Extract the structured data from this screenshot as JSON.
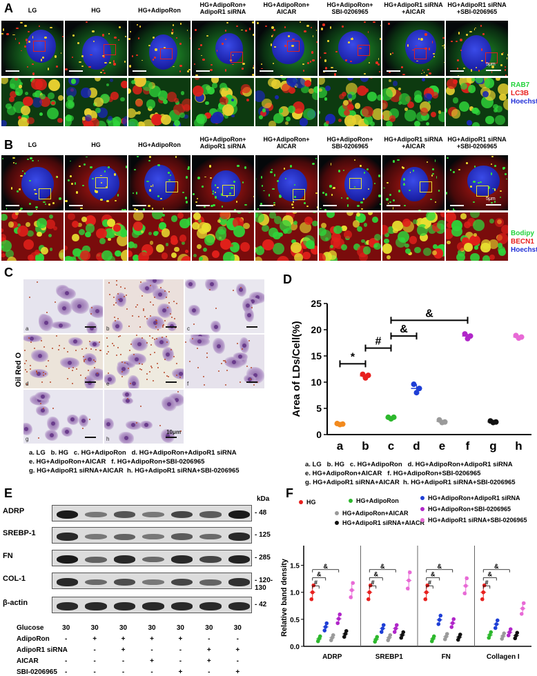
{
  "panels": {
    "A": "A",
    "B": "B",
    "C": "C",
    "D": "D",
    "E": "E",
    "F": "F"
  },
  "groups_A": [
    "LG",
    "HG",
    "HG+AdipoRon",
    "HG+AdipoRon+\nAdipoR1 siRNA",
    "HG+AdipoRon+\nAICAR",
    "HG+AdipoRon+\nSBI-0206965",
    "HG+AdipoR1 siRNA\n+AICAR",
    "HG+AdipoR1 siRNA\n+SBI-0206965"
  ],
  "groups_B": [
    "LG",
    "HG",
    "HG+AdipoRon",
    "HG+AdipoRon+\nAdipoR1 siRNA",
    "HG+AdipoRon+\nAICAR",
    "HG+AdipoRon+\nSBI-0206965",
    "HG+AdipoR1 siRNA\n+AICAR",
    "HG+AdipoR1 siRNA\n+SBI-0206965"
  ],
  "stainA": [
    {
      "name": "RAB7",
      "color": "#22d23a"
    },
    {
      "name": "LC3B",
      "color": "#e8201e"
    },
    {
      "name": "Hoechst",
      "color": "#2230d8"
    }
  ],
  "stainB": [
    {
      "name": "Bodipy",
      "color": "#22d23a"
    },
    {
      "name": "BECN1",
      "color": "#e8201e"
    },
    {
      "name": "Hoechst",
      "color": "#2230d8"
    }
  ],
  "scale_A": "5μm",
  "scale_B": "5μm",
  "oil_red": {
    "side_label": "Oil Red O",
    "tiles": [
      "a",
      "b",
      "c",
      "d",
      "e",
      "f",
      "g",
      "h"
    ],
    "scale": "10μm",
    "legend": [
      "a. LG   b. HG   c. HG+AdipoRon   d. HG+AdipoRon+AdipoR1 siRNA",
      "e. HG+AdipoRon+AICAR   f. HG+AdipoRon+SBI-0206965",
      "g. HG+AdipoR1 siRNA+AICAR  h. HG+AdipoR1 siRNA+SBI-0206965"
    ]
  },
  "chart_D_legend": [
    "a. LG   b. HG   c. HG+AdipoRon   d. HG+AdipoRon+AdipoR1 siRNA",
    "e. HG+AdipoRon+AICAR   f. HG+AdipoRon+SBI-0206965",
    "g. HG+AdipoR1 siRNA+AICAR  h. HG+AdipoR1 siRNA+SBI-0206965"
  ],
  "western": {
    "proteins": [
      {
        "name": "ADRP",
        "kda": "- 48"
      },
      {
        "name": "SREBP-1",
        "kda": "- 125"
      },
      {
        "name": "FN",
        "kda": "- 285"
      },
      {
        "name": "COL-1",
        "kda": "- 120-130"
      },
      {
        "name": "β-actin",
        "kda": "- 42"
      }
    ],
    "kda_header": "kDa",
    "conditions": [
      {
        "name": "Glucose",
        "vals": [
          "30",
          "30",
          "30",
          "30",
          "30",
          "30",
          "30"
        ]
      },
      {
        "name": "AdipoRon",
        "vals": [
          "-",
          "+",
          "+",
          "+",
          "+",
          "-",
          "-"
        ]
      },
      {
        "name": "AdipoR1 siRNA",
        "vals": [
          "-",
          "-",
          "+",
          "-",
          "-",
          "+",
          "+"
        ]
      },
      {
        "name": "AICAR",
        "vals": [
          "-",
          "-",
          "-",
          "+",
          "-",
          "+",
          "-"
        ]
      },
      {
        "name": "SBI-0206965",
        "vals": [
          "-",
          "-",
          "-",
          "-",
          "+",
          "-",
          "+"
        ]
      }
    ]
  },
  "chart_data": [
    {
      "type": "scatter",
      "panel": "D",
      "title": "",
      "ylabel": "Area of LDs/Cell(%)",
      "xlabel": "",
      "categories": [
        "a",
        "b",
        "c",
        "d",
        "e",
        "f",
        "g",
        "h"
      ],
      "ylim": [
        0,
        25
      ],
      "yticks": [
        0,
        5,
        10,
        15,
        20,
        25
      ],
      "colors": [
        "#f28a1e",
        "#e8201e",
        "#2db82d",
        "#1f3fd6",
        "#9a9a9a",
        "#b026c9",
        "#111111",
        "#e86ad6"
      ],
      "means": [
        2.0,
        11.2,
        3.2,
        8.8,
        2.5,
        18.8,
        2.4,
        18.6
      ],
      "points": [
        [
          2.1,
          1.9,
          2.0
        ],
        [
          11.5,
          10.8,
          11.3
        ],
        [
          3.3,
          3.0,
          3.3
        ],
        [
          9.6,
          8.0,
          8.8
        ],
        [
          2.8,
          2.3,
          2.4
        ],
        [
          19.2,
          18.3,
          18.8
        ],
        [
          2.6,
          2.3,
          2.4
        ],
        [
          18.9,
          18.4,
          18.6
        ]
      ],
      "significance": [
        {
          "from": "a",
          "to": "b",
          "symbol": "*"
        },
        {
          "from": "b",
          "to": "c",
          "symbol": "#"
        },
        {
          "from": "c",
          "to": "d",
          "symbol": "&"
        },
        {
          "from": "c",
          "to": "f",
          "symbol": "&"
        }
      ]
    },
    {
      "type": "scatter",
      "panel": "F",
      "title": "",
      "ylabel": "Relative band density",
      "xlabel": "",
      "groups": [
        "ADRP",
        "SREBP1",
        "FN",
        "Collagen I"
      ],
      "ylim": [
        0,
        1.8
      ],
      "yticks": [
        0.0,
        0.5,
        1.0,
        1.5
      ],
      "series": [
        {
          "name": "HG",
          "color": "#e8201e",
          "values": [
            1.0,
            1.0,
            1.0,
            1.0
          ]
        },
        {
          "name": "HG+AdipoRon",
          "color": "#2db82d",
          "values": [
            0.14,
            0.13,
            0.14,
            0.21
          ]
        },
        {
          "name": "HG+AdipoRon+AdipoR1 siRNA",
          "color": "#1f3fd6",
          "values": [
            0.36,
            0.33,
            0.49,
            0.41
          ]
        },
        {
          "name": "HG+AdipoRon+AICAR",
          "color": "#9a9a9a",
          "values": [
            0.16,
            0.16,
            0.18,
            0.19
          ]
        },
        {
          "name": "HG+AdipoRon+SBI-0206965",
          "color": "#b026c9",
          "values": [
            0.51,
            0.33,
            0.43,
            0.26
          ]
        },
        {
          "name": "HG+AdipoR1 siRNA+AIACR",
          "color": "#111111",
          "values": [
            0.23,
            0.21,
            0.17,
            0.2
          ]
        },
        {
          "name": "HG+AdipoR1 siRNA+SBI-0206965",
          "color": "#e86ad6",
          "values": [
            1.04,
            1.22,
            1.12,
            0.7
          ]
        }
      ],
      "significance": [
        "#",
        "&",
        "&"
      ]
    }
  ]
}
